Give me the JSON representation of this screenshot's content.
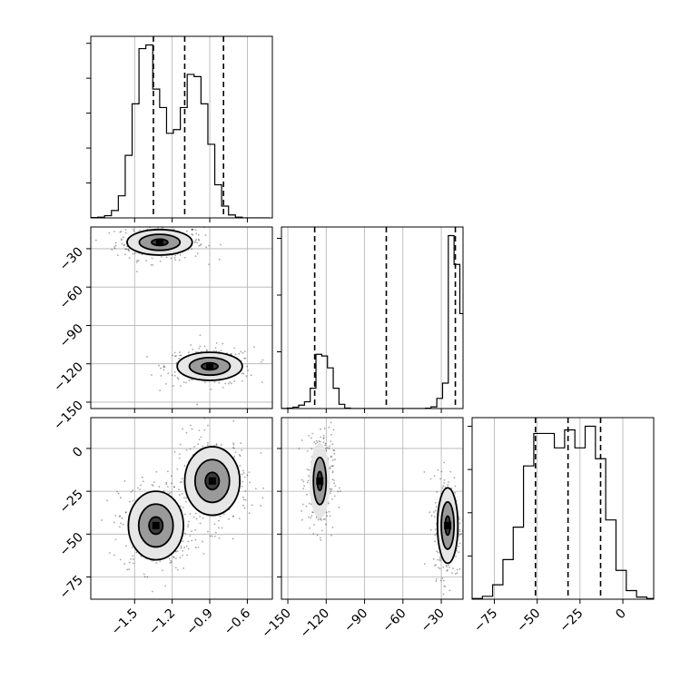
{
  "chart_data": {
    "type": "corner",
    "description_source": "visible only",
    "colors": {
      "ink": "#000000",
      "grid": "#b0b0b0",
      "background": "#ffffff"
    },
    "grid": true,
    "params": [
      {
        "range": [
          -1.85,
          -0.4
        ],
        "ticks": [
          -1.5,
          -1.2,
          -0.9,
          -0.6
        ],
        "tick_labels": [
          "−1.5",
          "−1.2",
          "−0.9",
          "−0.6"
        ],
        "quantiles": [
          -1.35,
          -1.1,
          -0.79
        ]
      },
      {
        "range": [
          -155,
          -13
        ],
        "ticks": [
          -150,
          -120,
          -90,
          -60,
          -30
        ],
        "tick_labels": [
          "−150",
          "−120",
          "−90",
          "−60",
          "−30"
        ],
        "quantiles": [
          -129,
          -73,
          -19
        ]
      },
      {
        "range": [
          -88,
          18
        ],
        "ticks": [
          -75,
          -50,
          -25,
          0
        ],
        "tick_labels": [
          "−75",
          "−50",
          "−25",
          "0"
        ],
        "quantiles": [
          -51,
          -32,
          -13
        ]
      }
    ],
    "histograms": [
      {
        "param": 0,
        "edges": [
          -1.85,
          -1.795,
          -1.74,
          -1.685,
          -1.63,
          -1.575,
          -1.52,
          -1.465,
          -1.41,
          -1.355,
          -1.3,
          -1.245,
          -1.19,
          -1.135,
          -1.08,
          -1.025,
          -0.97,
          -0.915,
          -0.86,
          -0.805,
          -0.75,
          -0.695,
          -0.64,
          -0.585,
          -0.53,
          -0.475,
          -0.42
        ],
        "counts": [
          0.5,
          1,
          3,
          10,
          30,
          85,
          155,
          230,
          235,
          175,
          150,
          115,
          120,
          150,
          195,
          192,
          155,
          100,
          45,
          16,
          4,
          1,
          0,
          0,
          0,
          0
        ]
      },
      {
        "param": 1,
        "edges": [
          -155,
          -150.5,
          -146,
          -141.5,
          -137,
          -132.5,
          -128,
          -123.5,
          -119,
          -114.5,
          -110,
          -105.5,
          -101,
          -96.5,
          -92,
          -87.5,
          -83,
          -78.5,
          -74,
          -69.5,
          -65,
          -60.5,
          -56,
          -51.5,
          -47,
          -42.5,
          -38,
          -33.5,
          -29,
          -24.5,
          -20,
          -15.5,
          -13
        ],
        "counts": [
          1,
          3,
          8,
          20,
          40,
          120,
          320,
          310,
          240,
          120,
          25,
          3,
          0,
          0,
          0,
          0,
          0,
          0,
          0,
          0,
          0,
          0,
          0,
          0,
          0,
          2,
          10,
          60,
          150,
          1020,
          850,
          560
        ]
      },
      {
        "param": 2,
        "edges": [
          -88,
          -82,
          -76,
          -70,
          -64,
          -58,
          -52,
          -46,
          -40,
          -34,
          -28,
          -22,
          -16,
          -10,
          -4,
          2,
          8,
          14,
          18
        ],
        "counts": [
          1,
          4,
          20,
          55,
          100,
          185,
          230,
          230,
          210,
          235,
          210,
          240,
          195,
          110,
          40,
          12,
          3,
          1
        ]
      }
    ],
    "blobs": [
      {
        "panel": "p1_vs_p0",
        "center": [
          -1.3,
          -25
        ],
        "sd": [
          0.13,
          5
        ],
        "weight": 0.5,
        "levels": [
          0.9,
          0.55,
          0.25
        ]
      },
      {
        "panel": "p1_vs_p0",
        "center": [
          -0.9,
          -122
        ],
        "sd": [
          0.13,
          5.5
        ],
        "weight": 0.5,
        "levels": [
          0.9,
          0.55,
          0.25
        ]
      },
      {
        "panel": "p2_vs_p0",
        "center": [
          -1.33,
          -45
        ],
        "sd": [
          0.11,
          10
        ],
        "weight": 0.5,
        "levels": [
          0.9,
          0.55,
          0.25
        ]
      },
      {
        "panel": "p2_vs_p0",
        "center": [
          -0.88,
          -19
        ],
        "sd": [
          0.11,
          10
        ],
        "weight": 0.5,
        "levels": [
          0.9,
          0.55,
          0.25
        ]
      },
      {
        "panel": "p2_vs_p1",
        "center": [
          -125,
          -19
        ],
        "sd": [
          4,
          11
        ],
        "weight": 0.5,
        "levels": [
          0.9,
          0.55
        ]
      },
      {
        "panel": "p2_vs_p1",
        "center": [
          -25,
          -45
        ],
        "sd": [
          4,
          11
        ],
        "weight": 0.5,
        "levels": [
          0.9,
          0.55,
          0.25
        ]
      }
    ]
  }
}
